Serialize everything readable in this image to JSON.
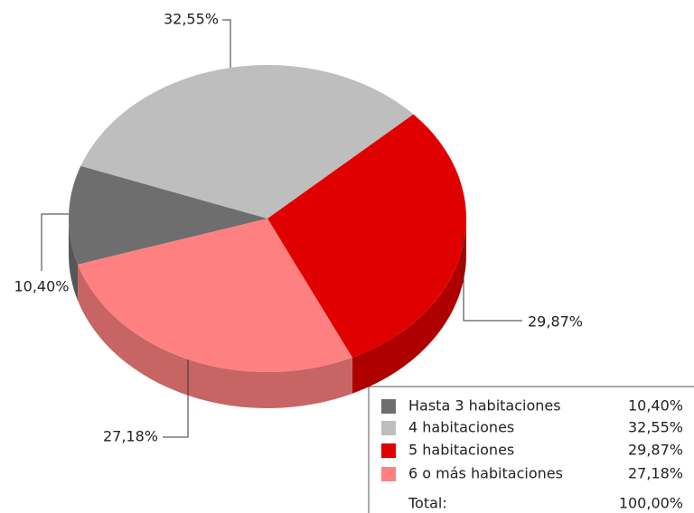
{
  "chart_data": {
    "type": "pie",
    "categories": [
      "Hasta 3 habitaciones",
      "4 habitaciones",
      "5 habitaciones",
      "6 o más habitaciones"
    ],
    "values": [
      10.4,
      32.55,
      29.87,
      27.18
    ],
    "value_labels": [
      "10,40%",
      "32,55%",
      "29,87%",
      "27,18%"
    ],
    "colors": [
      "#6e6e6e",
      "#bebebe",
      "#e00000",
      "#ff8080"
    ],
    "total_label": "Total:",
    "total_value_label": "100,00%"
  }
}
